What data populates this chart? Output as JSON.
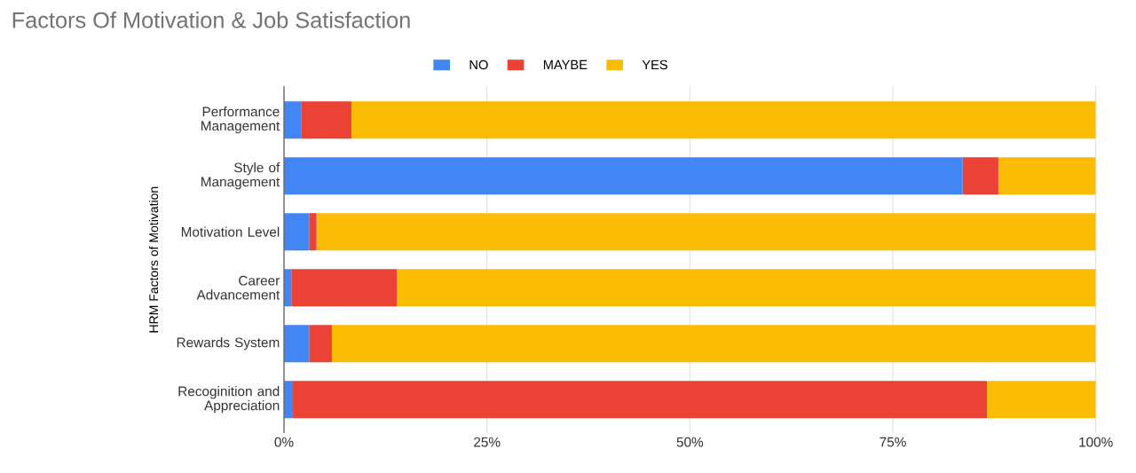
{
  "chart_data": {
    "type": "bar",
    "orientation": "horizontal",
    "stacked": true,
    "title": "Factors Of Motivation & Job Satisfaction",
    "ylabel": "HRM Factors of Motivation",
    "categories": [
      "Performance Management",
      "Style of Management",
      "Motivation Level",
      "Career Advancement",
      "Rewards System",
      "Recoginition and Appreciation"
    ],
    "series": [
      {
        "name": "NO",
        "color": "#4285f4",
        "values": [
          2.1,
          83.6,
          3.1,
          0.9,
          3.1,
          1.1
        ]
      },
      {
        "name": "MAYBE",
        "color": "#ea4335",
        "values": [
          6.2,
          4.4,
          0.9,
          13,
          2.8,
          85.5
        ]
      },
      {
        "name": "YES",
        "color": "#fbbc04",
        "values": [
          91.7,
          12,
          96,
          86.1,
          94.1,
          13.4
        ]
      }
    ],
    "xlim": [
      0,
      100
    ],
    "xticks": [
      {
        "value": 0,
        "label": "0%"
      },
      {
        "value": 25,
        "label": "25%"
      },
      {
        "value": 50,
        "label": "50%"
      },
      {
        "value": 75,
        "label": "75%"
      },
      {
        "value": 100,
        "label": "100%"
      }
    ],
    "grid": "x",
    "legend": "top"
  }
}
